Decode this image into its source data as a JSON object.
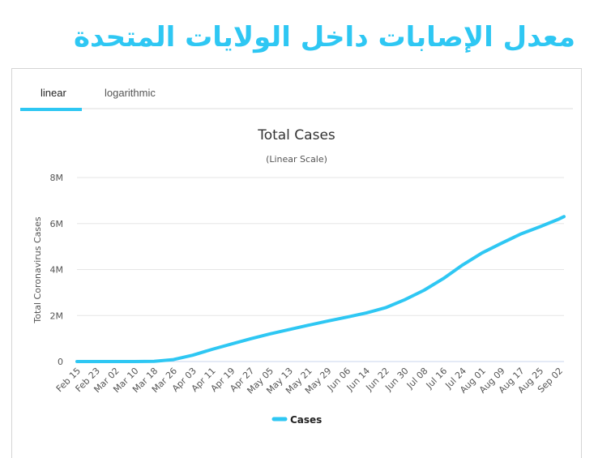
{
  "page_title": "معدل الإصابات داخل الولايات المتحدة",
  "tabs": [
    {
      "label": "linear",
      "active": true
    },
    {
      "label": "logarithmic",
      "active": false
    }
  ],
  "accent_color": "#2ec7f3",
  "chart_data": {
    "type": "line",
    "title": "Total Cases",
    "subtitle": "(Linear Scale)",
    "ylabel": "Total Coronavirus Cases",
    "xlabel": "",
    "ylim": [
      0,
      8000000
    ],
    "yticks": [
      {
        "v": 0,
        "label": "0"
      },
      {
        "v": 2000000,
        "label": "2M"
      },
      {
        "v": 4000000,
        "label": "4M"
      },
      {
        "v": 6000000,
        "label": "6M"
      },
      {
        "v": 8000000,
        "label": "8M"
      }
    ],
    "grid": true,
    "legend": "bottom-center",
    "categories": [
      "Feb 15",
      "Feb 23",
      "Mar 02",
      "Mar 10",
      "Mar 18",
      "Mar 26",
      "Apr 03",
      "Apr 11",
      "Apr 19",
      "Apr 27",
      "May 05",
      "May 13",
      "May 21",
      "May 29",
      "Jun 06",
      "Jun 14",
      "Jun 22",
      "Jun 30",
      "Jul 08",
      "Jul 16",
      "Jul 24",
      "Aug 01",
      "Aug 09",
      "Aug 17",
      "Aug 25",
      "Sep 02"
    ],
    "series": [
      {
        "name": "Cases",
        "color": "#2ec7f3",
        "values": [
          15,
          15,
          100,
          1000,
          9000,
          85000,
          275000,
          530000,
          760000,
          990000,
          1200000,
          1390000,
          1580000,
          1760000,
          1930000,
          2110000,
          2340000,
          2690000,
          3100000,
          3610000,
          4200000,
          4720000,
          5140000,
          5540000,
          5860000,
          6200000
        ]
      }
    ]
  }
}
